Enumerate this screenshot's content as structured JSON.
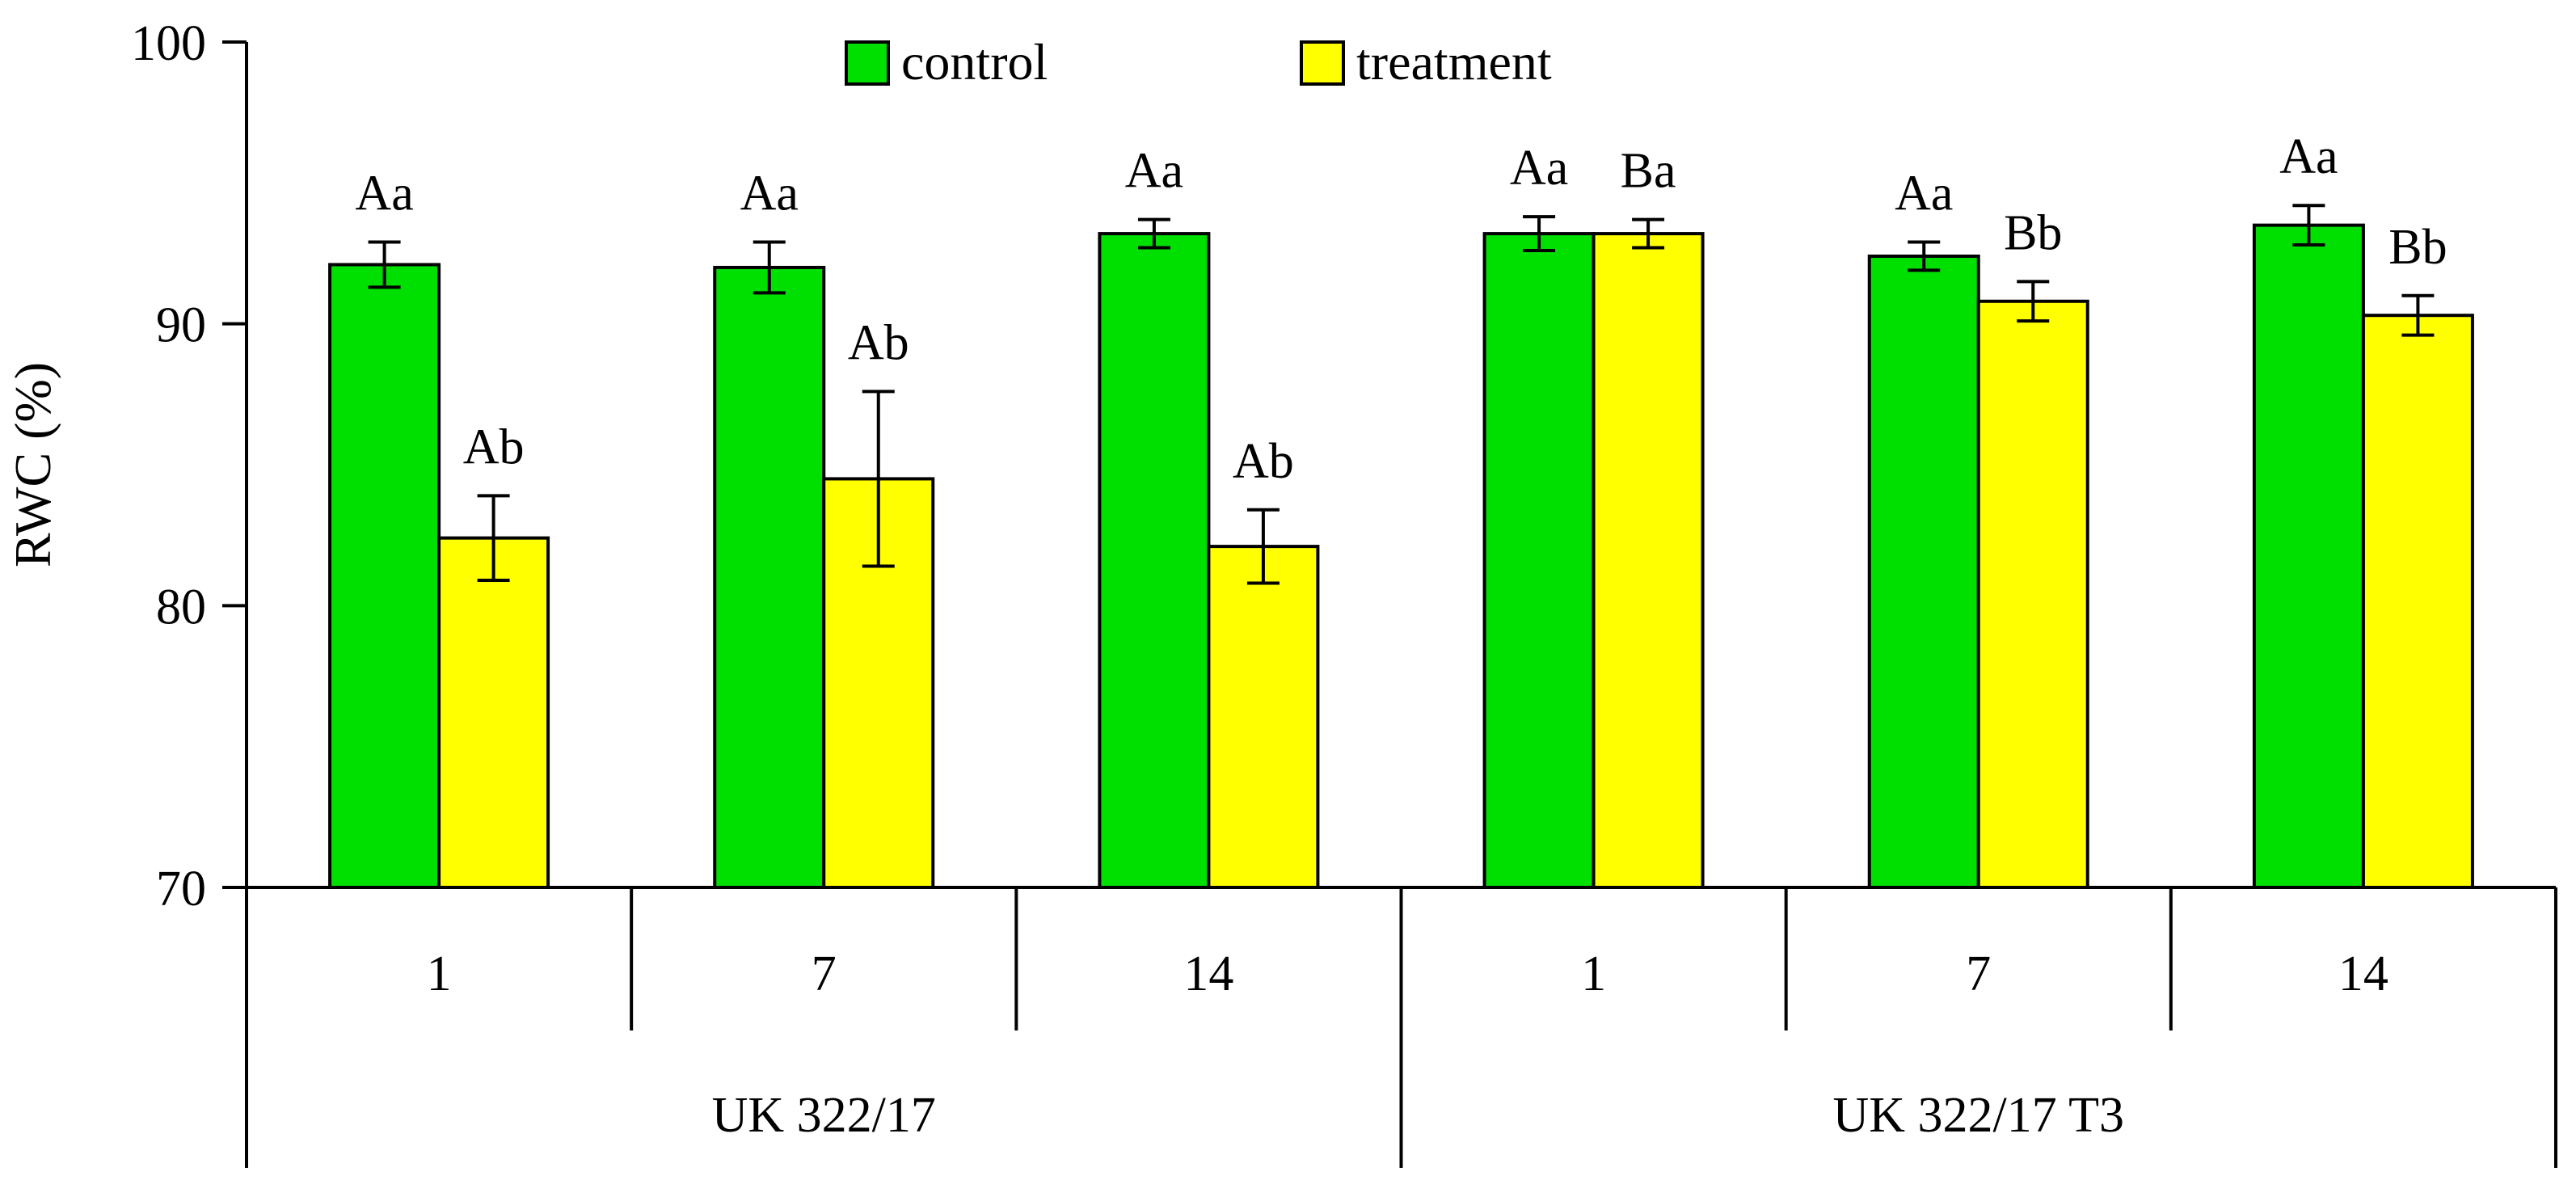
{
  "chart_data": {
    "type": "bar",
    "title": "",
    "ylabel": "RWC (%)",
    "xlabel": "",
    "ylim": [
      70,
      100
    ],
    "yticks": [
      70,
      80,
      90,
      100
    ],
    "grid": false,
    "legend_position": "top-center",
    "groups": [
      {
        "label": "UK 322/17",
        "categories": [
          "1",
          "7",
          "14"
        ]
      },
      {
        "label": "UK 322/17 T3",
        "categories": [
          "1",
          "7",
          "14"
        ]
      }
    ],
    "categories": [
      "1",
      "7",
      "14",
      "1",
      "7",
      "14"
    ],
    "series": [
      {
        "name": "control",
        "color": "#00E000",
        "values": [
          92.1,
          92.0,
          93.2,
          93.2,
          92.4,
          93.5
        ],
        "errors": [
          0.8,
          0.9,
          0.5,
          0.6,
          0.5,
          0.7
        ],
        "labels": [
          "Aa",
          "Aa",
          "Aa",
          "Aa",
          "Aa",
          "Aa"
        ]
      },
      {
        "name": "treatment",
        "color": "#FFFF00",
        "values": [
          82.4,
          84.5,
          82.1,
          93.2,
          90.8,
          90.3
        ],
        "errors": [
          1.5,
          3.1,
          1.3,
          0.5,
          0.7,
          0.7
        ],
        "labels": [
          "Ab",
          "Ab",
          "Ab",
          "Ba",
          "Bb",
          "Bb"
        ]
      }
    ]
  }
}
